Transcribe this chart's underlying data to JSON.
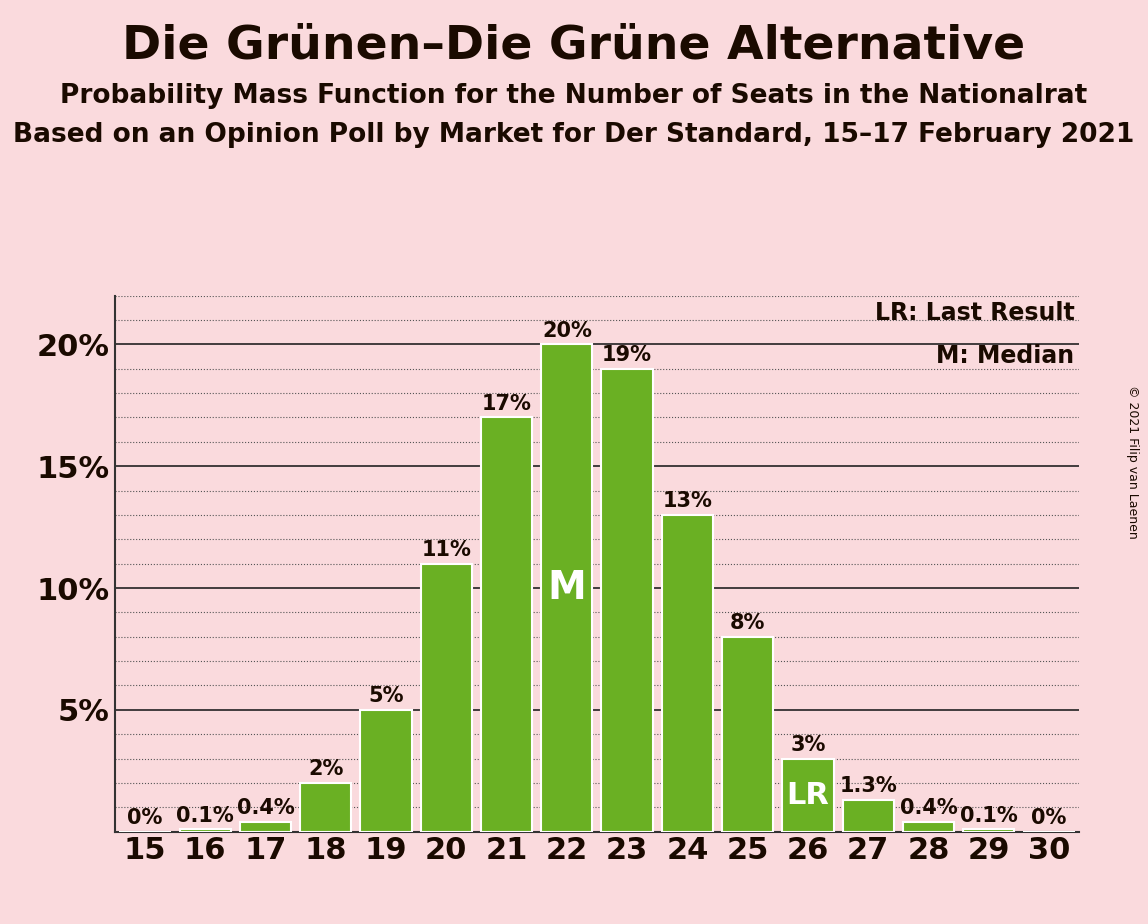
{
  "title": "Die Grünen–Die Grüne Alternative",
  "subtitle1": "Probability Mass Function for the Number of Seats in the Nationalrat",
  "subtitle2": "Based on an Opinion Poll by Market for Der Standard, 15–17 February 2021",
  "copyright": "© 2021 Filip van Laenen",
  "categories": [
    15,
    16,
    17,
    18,
    19,
    20,
    21,
    22,
    23,
    24,
    25,
    26,
    27,
    28,
    29,
    30
  ],
  "values": [
    0.0,
    0.1,
    0.4,
    2.0,
    5.0,
    11.0,
    17.0,
    20.0,
    19.0,
    13.0,
    8.0,
    3.0,
    1.3,
    0.4,
    0.1,
    0.0
  ],
  "labels": [
    "0%",
    "0.1%",
    "0.4%",
    "2%",
    "5%",
    "11%",
    "17%",
    "20%",
    "19%",
    "13%",
    "8%",
    "3%",
    "1.3%",
    "0.4%",
    "0.1%",
    "0%"
  ],
  "bar_color": "#6ab023",
  "background_color": "#fadadd",
  "text_color": "#1a0a00",
  "median_seat": 22,
  "last_result_seat": 26,
  "legend_lr": "LR: Last Result",
  "legend_m": "M: Median",
  "ylim_max": 22,
  "yticks": [
    0,
    5,
    10,
    15,
    20
  ],
  "ytick_labels": [
    "",
    "5%",
    "10%",
    "15%",
    "20%"
  ],
  "title_fontsize": 34,
  "subtitle_fontsize": 19,
  "bar_label_fontsize": 15,
  "axis_tick_fontsize": 22,
  "legend_fontsize": 17,
  "m_fontsize": 28,
  "lr_fontsize": 22
}
